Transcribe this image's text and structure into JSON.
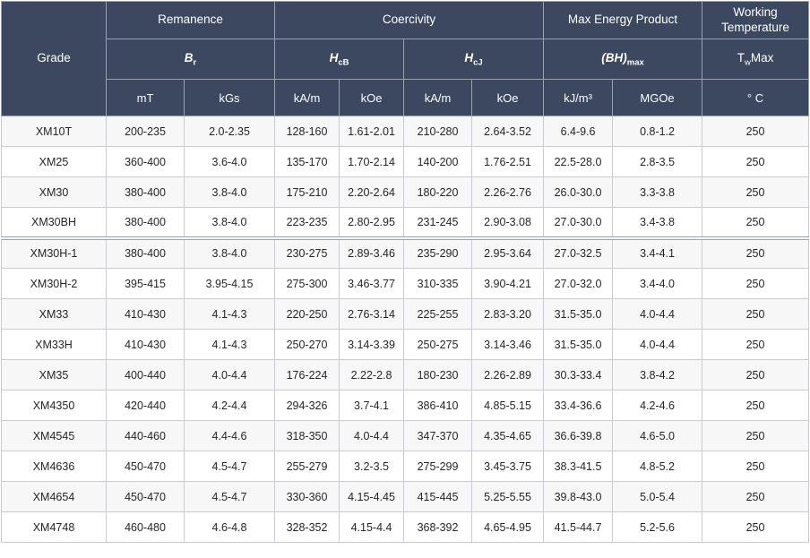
{
  "colors": {
    "header_bg": "#3c4860",
    "header_text": "#ffffff",
    "header_border": "#98a1b0",
    "body_border": "#c9cdd2",
    "row_stripe": "#f7f7f7",
    "body_text": "#262626",
    "thick_divider": "#9ba2ab"
  },
  "header": {
    "grade": "Grade",
    "group_labels": [
      "Remanence",
      "Coercivity",
      "Max Energy Product",
      "Working Temperature"
    ],
    "symbols": [
      {
        "main": "B",
        "sub": "r",
        "tail": ""
      },
      {
        "main": "H",
        "sub": "cB",
        "tail": ""
      },
      {
        "main": "H",
        "sub": "cJ",
        "tail": ""
      },
      {
        "main": "(BH)",
        "sub": "max",
        "tail": ""
      },
      {
        "main": "T",
        "sub": "w",
        "tail": "Max"
      }
    ],
    "units": [
      "mT",
      "kGs",
      "kA/m",
      "kOe",
      "kA/m",
      "kOe",
      "kJ/m³",
      "MGOe",
      "° C"
    ]
  },
  "rows": [
    {
      "grade": "XM10T",
      "values": [
        "200-235",
        "2.0-2.35",
        "128-160",
        "1.61-2.01",
        "210-280",
        "2.64-3.52",
        "6.4-9.6",
        "0.8-1.2",
        "250"
      ]
    },
    {
      "grade": "XM25",
      "values": [
        "360-400",
        "3.6-4.0",
        "135-170",
        "1.70-2.14",
        "140-200",
        "1.76-2.51",
        "22.5-28.0",
        "2.8-3.5",
        "250"
      ]
    },
    {
      "grade": "XM30",
      "values": [
        "380-400",
        "3.8-4.0",
        "175-210",
        "2.20-2.64",
        "180-220",
        "2.26-2.76",
        "26.0-30.0",
        "3.3-3.8",
        "250"
      ]
    },
    {
      "grade": "XM30BH",
      "values": [
        "380-400",
        "3.8-4.0",
        "223-235",
        "2.80-2.95",
        "231-245",
        "2.90-3.08",
        "27.0-30.0",
        "3.4-3.8",
        "250"
      ]
    },
    {
      "grade": "XM30H-1",
      "values": [
        "380-400",
        "3.8-4.0",
        "230-275",
        "2.89-3.46",
        "235-290",
        "2.95-3.64",
        "27.0-32.5",
        "3.4-4.1",
        "250"
      ]
    },
    {
      "grade": "XM30H-2",
      "values": [
        "395-415",
        "3.95-4.15",
        "275-300",
        "3.46-3.77",
        "310-335",
        "3.90-4.21",
        "27.0-32.0",
        "3.4-4.0",
        "250"
      ]
    },
    {
      "grade": "XM33",
      "values": [
        "410-430",
        "4.1-4.3",
        "220-250",
        "2.76-3.14",
        "225-255",
        "2.83-3.20",
        "31.5-35.0",
        "4.0-4.4",
        "250"
      ]
    },
    {
      "grade": "XM33H",
      "values": [
        "410-430",
        "4.1-4.3",
        "250-270",
        "3.14-3.39",
        "250-275",
        "3.14-3.46",
        "31.5-35.0",
        "4.0-4.4",
        "250"
      ]
    },
    {
      "grade": "XM35",
      "values": [
        "400-440",
        "4.0-4.4",
        "176-224",
        "2.22-2.8",
        "180-230",
        "2.26-2.89",
        "30.3-33.4",
        "3.8-4.2",
        "250"
      ]
    },
    {
      "grade": "XM4350",
      "values": [
        "420-440",
        "4.2-4.4",
        "294-326",
        "3.7-4.1",
        "386-410",
        "4.85-5.15",
        "33.4-36.6",
        "4.2-4.6",
        "250"
      ]
    },
    {
      "grade": "XM4545",
      "values": [
        "440-460",
        "4.4-4.6",
        "318-350",
        "4.0-4.4",
        "347-370",
        "4.35-4.65",
        "36.6-39.8",
        "4.6-5.0",
        "250"
      ]
    },
    {
      "grade": "XM4636",
      "values": [
        "450-470",
        "4.5-4.7",
        "255-279",
        "3.2-3.5",
        "275-299",
        "3.45-3.75",
        "38.3-41.5",
        "4.8-5.2",
        "250"
      ]
    },
    {
      "grade": "XM4654",
      "values": [
        "450-470",
        "4.5-4.7",
        "330-360",
        "4.15-4.45",
        "415-445",
        "5.25-5.55",
        "39.8-43.0",
        "5.0-5.4",
        "250"
      ]
    },
    {
      "grade": "XM4748",
      "values": [
        "460-480",
        "4.6-4.8",
        "328-352",
        "4.15-4.4",
        "368-392",
        "4.65-4.95",
        "41.5-44.7",
        "5.2-5.6",
        "250"
      ]
    }
  ]
}
